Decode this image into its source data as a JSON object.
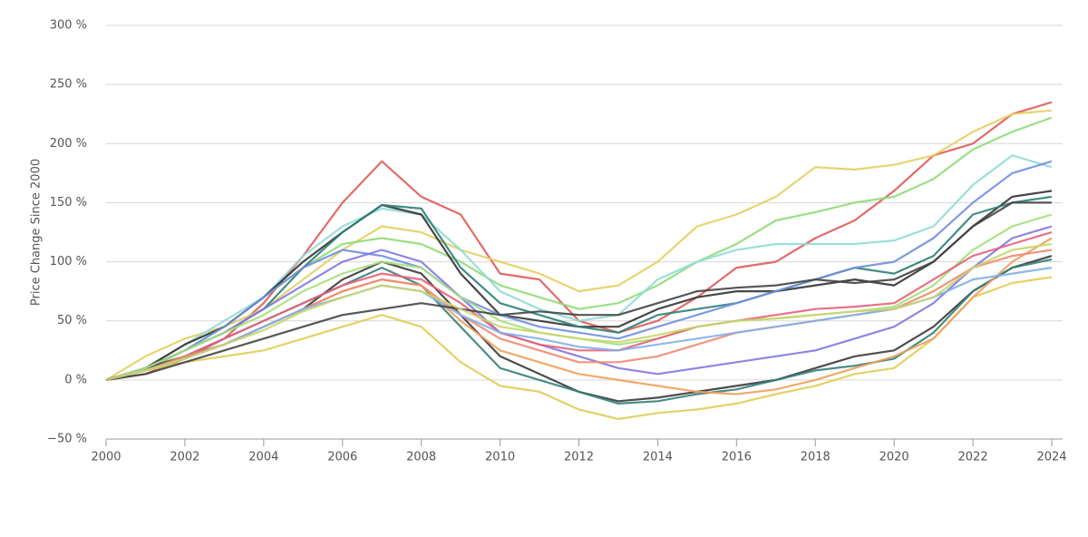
{
  "chart_data": {
    "type": "line",
    "y_label": "Price Change Since 2000",
    "x": [
      2000,
      2001,
      2002,
      2003,
      2004,
      2005,
      2006,
      2007,
      2008,
      2009,
      2010,
      2011,
      2012,
      2013,
      2014,
      2015,
      2016,
      2017,
      2018,
      2019,
      2020,
      2021,
      2022,
      2023,
      2024
    ],
    "xlim": [
      2000,
      2024
    ],
    "xticks": [
      2000,
      2002,
      2004,
      2006,
      2008,
      2010,
      2012,
      2014,
      2016,
      2018,
      2020,
      2022,
      2024
    ],
    "ylim": [
      -50,
      300
    ],
    "yticks": [
      {
        "value": -50,
        "label": "−50 %"
      },
      {
        "value": 0,
        "label": "0 %"
      },
      {
        "value": 50,
        "label": "50 %"
      },
      {
        "value": 100,
        "label": "100 %"
      },
      {
        "value": 150,
        "label": "150 %"
      },
      {
        "value": 200,
        "label": "200 %"
      },
      {
        "value": 250,
        "label": "250 %"
      },
      {
        "value": 300,
        "label": "300 %"
      }
    ],
    "grid": true,
    "series": [
      {
        "color": "#e05a5a",
        "values": [
          0,
          5,
          18,
          35,
          65,
          105,
          150,
          185,
          155,
          140,
          90,
          85,
          50,
          40,
          50,
          70,
          95,
          100,
          120,
          135,
          160,
          190,
          200,
          225,
          235
        ]
      },
      {
        "color": "#e3cf5f",
        "values": [
          0,
          20,
          35,
          45,
          60,
          85,
          110,
          130,
          125,
          110,
          100,
          90,
          75,
          80,
          100,
          130,
          140,
          155,
          180,
          178,
          182,
          190,
          210,
          225,
          228
        ]
      },
      {
        "color": "#8fdc78",
        "values": [
          0,
          8,
          25,
          45,
          70,
          95,
          115,
          120,
          115,
          100,
          80,
          70,
          60,
          65,
          80,
          100,
          115,
          135,
          142,
          150,
          155,
          170,
          195,
          210,
          222
        ]
      },
      {
        "color": "#8fdcd4",
        "values": [
          0,
          10,
          30,
          50,
          70,
          105,
          130,
          145,
          140,
          110,
          75,
          60,
          50,
          55,
          85,
          100,
          110,
          115,
          115,
          115,
          118,
          130,
          165,
          190,
          180
        ]
      },
      {
        "color": "#333333",
        "values": [
          0,
          10,
          30,
          45,
          70,
          100,
          125,
          148,
          140,
          90,
          55,
          50,
          45,
          45,
          60,
          70,
          75,
          75,
          80,
          85,
          80,
          100,
          130,
          155,
          160
        ]
      },
      {
        "color": "#2f7f78",
        "values": [
          0,
          10,
          25,
          40,
          60,
          95,
          125,
          148,
          145,
          95,
          65,
          55,
          45,
          40,
          55,
          60,
          65,
          75,
          85,
          95,
          90,
          105,
          140,
          150,
          155
        ]
      },
      {
        "color": "#6f8fe0",
        "values": [
          0,
          10,
          25,
          45,
          70,
          95,
          110,
          105,
          95,
          70,
          55,
          45,
          40,
          35,
          45,
          55,
          65,
          75,
          85,
          95,
          100,
          120,
          150,
          175,
          185
        ]
      },
      {
        "color": "#e0cc55",
        "values": [
          0,
          8,
          15,
          20,
          25,
          35,
          45,
          55,
          45,
          15,
          -5,
          -10,
          -25,
          -33,
          -28,
          -25,
          -20,
          -12,
          -5,
          5,
          10,
          35,
          70,
          82,
          87
        ]
      },
      {
        "color": "#3a3a3a",
        "values": [
          0,
          10,
          20,
          30,
          45,
          60,
          85,
          100,
          90,
          55,
          20,
          5,
          -10,
          -18,
          -15,
          -10,
          -5,
          0,
          10,
          20,
          25,
          45,
          75,
          95,
          105
        ]
      },
      {
        "color": "#35807a",
        "values": [
          0,
          8,
          20,
          35,
          50,
          65,
          80,
          95,
          80,
          45,
          10,
          0,
          -10,
          -20,
          -18,
          -12,
          -8,
          0,
          8,
          12,
          18,
          40,
          75,
          95,
          102
        ]
      },
      {
        "color": "#eea05a",
        "values": [
          0,
          8,
          18,
          30,
          45,
          60,
          75,
          85,
          80,
          50,
          25,
          15,
          5,
          0,
          -5,
          -10,
          -12,
          -8,
          0,
          10,
          20,
          35,
          70,
          100,
          120
        ]
      },
      {
        "color": "#8178e0",
        "values": [
          0,
          10,
          25,
          40,
          60,
          80,
          100,
          110,
          100,
          70,
          40,
          30,
          20,
          10,
          5,
          10,
          15,
          20,
          25,
          35,
          45,
          65,
          95,
          120,
          130
        ]
      },
      {
        "color": "#a3e07a",
        "values": [
          0,
          10,
          25,
          40,
          55,
          75,
          90,
          100,
          95,
          70,
          50,
          40,
          35,
          30,
          35,
          45,
          50,
          52,
          55,
          58,
          62,
          80,
          110,
          130,
          140
        ]
      },
      {
        "color": "#e8607a",
        "values": [
          0,
          8,
          20,
          35,
          50,
          65,
          80,
          90,
          85,
          65,
          40,
          30,
          25,
          25,
          35,
          45,
          50,
          55,
          60,
          62,
          65,
          85,
          105,
          115,
          125
        ]
      },
      {
        "color": "#f08a70",
        "values": [
          0,
          8,
          20,
          30,
          45,
          60,
          75,
          85,
          80,
          55,
          35,
          25,
          15,
          15,
          20,
          30,
          40,
          45,
          50,
          55,
          60,
          75,
          95,
          105,
          110
        ]
      },
      {
        "color": "#7fb0ea",
        "values": [
          0,
          8,
          18,
          30,
          45,
          60,
          70,
          80,
          75,
          55,
          40,
          35,
          28,
          25,
          30,
          35,
          40,
          45,
          50,
          55,
          60,
          70,
          85,
          90,
          95
        ]
      },
      {
        "color": "#444444",
        "values": [
          0,
          5,
          15,
          25,
          35,
          45,
          55,
          60,
          65,
          60,
          55,
          58,
          55,
          55,
          65,
          75,
          78,
          80,
          85,
          82,
          85,
          100,
          130,
          150,
          150
        ]
      },
      {
        "color": "#c8d66a",
        "values": [
          0,
          8,
          18,
          30,
          42,
          58,
          70,
          80,
          75,
          60,
          45,
          40,
          35,
          32,
          38,
          45,
          50,
          52,
          55,
          58,
          60,
          70,
          95,
          110,
          115
        ]
      }
    ]
  }
}
